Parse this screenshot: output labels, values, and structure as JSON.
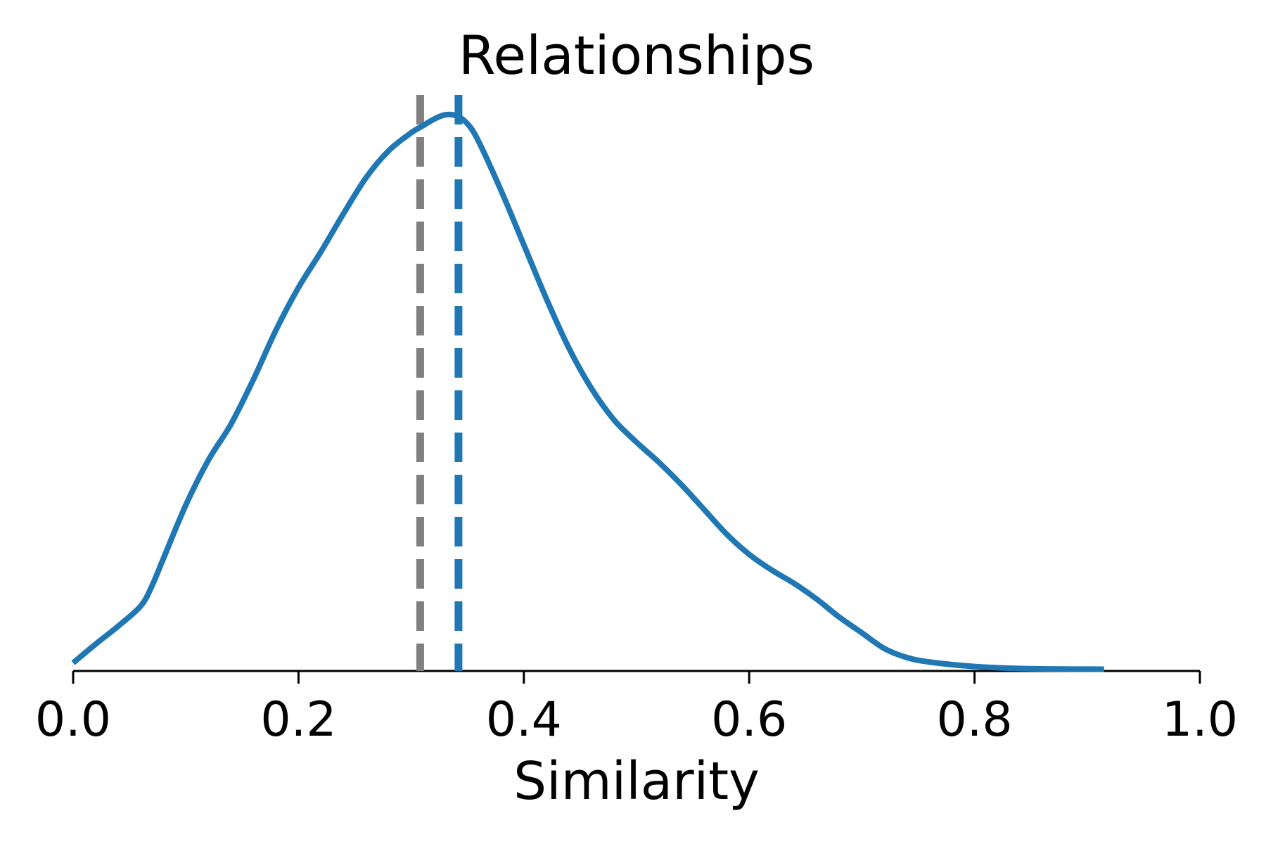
{
  "chart_data": {
    "type": "line",
    "title": "Relationships",
    "xlabel": "Similarity",
    "ylabel": "",
    "xlim": [
      0.0,
      1.0
    ],
    "xticks": [
      "0.0",
      "0.2",
      "0.4",
      "0.6",
      "0.8",
      "1.0"
    ],
    "grid": false,
    "legend": "none",
    "colors": {
      "curve": "#1f77b4",
      "mean_line": "#1f77b4",
      "reference_line": "#808080",
      "axis": "#000000"
    },
    "series": [
      {
        "kind": "density",
        "x": [
          0.0,
          0.02,
          0.04,
          0.06,
          0.07,
          0.08,
          0.1,
          0.12,
          0.14,
          0.16,
          0.18,
          0.2,
          0.22,
          0.24,
          0.26,
          0.28,
          0.3,
          0.31,
          0.32,
          0.33,
          0.34,
          0.35,
          0.36,
          0.38,
          0.4,
          0.42,
          0.44,
          0.46,
          0.48,
          0.5,
          0.52,
          0.54,
          0.56,
          0.58,
          0.6,
          0.62,
          0.64,
          0.66,
          0.68,
          0.7,
          0.72,
          0.74,
          0.76,
          0.8,
          0.85,
          0.915
        ],
        "y": [
          0.018,
          0.06,
          0.1,
          0.145,
          0.19,
          0.25,
          0.37,
          0.47,
          0.55,
          0.65,
          0.76,
          0.855,
          0.935,
          1.02,
          1.1,
          1.16,
          1.2,
          1.215,
          1.23,
          1.24,
          1.238,
          1.22,
          1.18,
          1.07,
          0.95,
          0.83,
          0.72,
          0.63,
          0.56,
          0.51,
          0.465,
          0.415,
          0.36,
          0.305,
          0.26,
          0.225,
          0.195,
          0.16,
          0.12,
          0.085,
          0.05,
          0.03,
          0.02,
          0.01,
          0.005,
          0.004
        ]
      }
    ],
    "vlines": [
      {
        "x": 0.308,
        "style": "dashed",
        "color": "#808080"
      },
      {
        "x": 0.342,
        "style": "dashed",
        "color": "#1f77b4"
      }
    ],
    "ylim": [
      0.0,
      1.3
    ]
  }
}
